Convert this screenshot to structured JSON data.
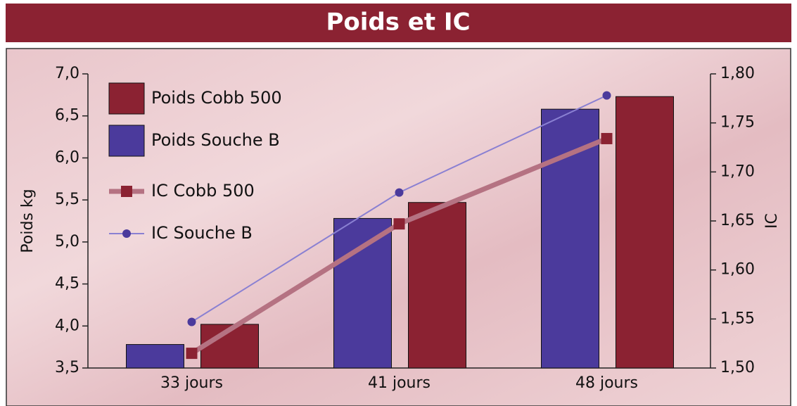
{
  "chart_data": {
    "type": "bar",
    "title": "Poids et IC",
    "categories": [
      "33 jours",
      "41 jours",
      "48 jours"
    ],
    "ylabel": "Poids kg",
    "y2label": "IC",
    "ylim": [
      3.5,
      7.0
    ],
    "yticks": [
      {
        "value": 3.5,
        "label": "3,5"
      },
      {
        "value": 4.0,
        "label": "4,0"
      },
      {
        "value": 4.5,
        "label": "4,5"
      },
      {
        "value": 5.0,
        "label": "5,0"
      },
      {
        "value": 5.5,
        "label": "5,5"
      },
      {
        "value": 6.0,
        "label": "6,0"
      },
      {
        "value": 6.5,
        "label": "6,5"
      },
      {
        "value": 7.0,
        "label": "7,0"
      }
    ],
    "y2lim": [
      1.5,
      1.8
    ],
    "y2ticks": [
      {
        "value": 1.5,
        "label": "1,50"
      },
      {
        "value": 1.55,
        "label": "1,55"
      },
      {
        "value": 1.6,
        "label": "1,60"
      },
      {
        "value": 1.65,
        "label": "1,65"
      },
      {
        "value": 1.7,
        "label": "1,70"
      },
      {
        "value": 1.75,
        "label": "1,75"
      },
      {
        "value": 1.8,
        "label": "1,80"
      }
    ],
    "legend": "top-left",
    "series": [
      {
        "name": "Poids Cobb 500",
        "type": "bar",
        "color": "#8b2232",
        "values": [
          4.02,
          5.47,
          6.73
        ]
      },
      {
        "name": "Poids Souche B",
        "type": "bar",
        "color": "#4b3a9c",
        "values": [
          3.78,
          5.28,
          6.58
        ]
      },
      {
        "name": "IC Cobb 500",
        "type": "line",
        "axis": "y2",
        "color": "#b57282",
        "marker": "square",
        "values": [
          1.515,
          1.647,
          1.734
        ]
      },
      {
        "name": "IC Souche B",
        "type": "line",
        "axis": "y2",
        "color": "#8a80d2",
        "marker": "circle",
        "values": [
          1.547,
          1.679,
          1.778
        ]
      }
    ]
  }
}
